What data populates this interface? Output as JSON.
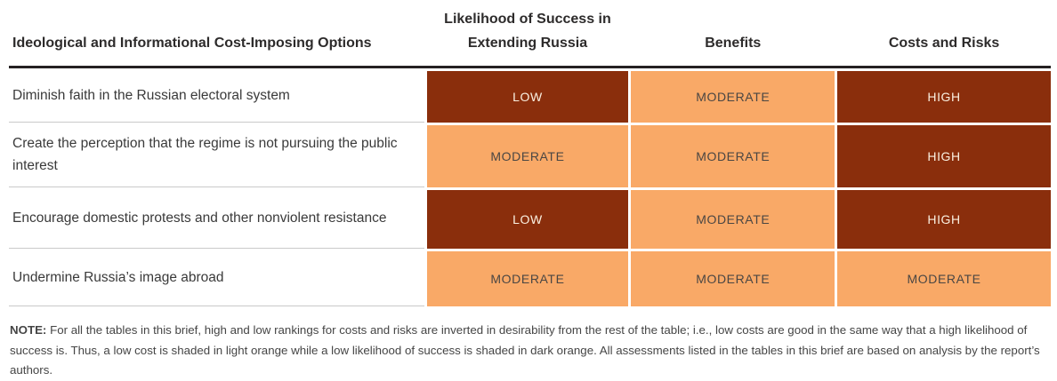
{
  "table": {
    "headers": [
      "Ideological and Informational Cost-Imposing Options",
      "Likelihood of Success in Extending Russia",
      "Benefits",
      "Costs and Risks"
    ],
    "rows": [
      {
        "option": "Diminish faith in the Russian electoral system",
        "ratings": [
          {
            "label": "LOW",
            "tone": "dark"
          },
          {
            "label": "MODERATE",
            "tone": "light"
          },
          {
            "label": "HIGH",
            "tone": "dark"
          }
        ]
      },
      {
        "option": "Create the perception that the regime is not pursuing the public interest",
        "ratings": [
          {
            "label": "MODERATE",
            "tone": "light"
          },
          {
            "label": "MODERATE",
            "tone": "light"
          },
          {
            "label": "HIGH",
            "tone": "dark"
          }
        ]
      },
      {
        "option": "Encourage domestic protests and other nonviolent resistance",
        "ratings": [
          {
            "label": "LOW",
            "tone": "dark"
          },
          {
            "label": "MODERATE",
            "tone": "light"
          },
          {
            "label": "HIGH",
            "tone": "dark"
          }
        ]
      },
      {
        "option": "Undermine Russia’s image abroad",
        "ratings": [
          {
            "label": "MODERATE",
            "tone": "light"
          },
          {
            "label": "MODERATE",
            "tone": "light"
          },
          {
            "label": "MODERATE",
            "tone": "light"
          }
        ]
      }
    ]
  },
  "note": {
    "label": "NOTE:",
    "text": " For all the tables in this brief, high and low rankings for costs and risks are inverted in desirability from the rest of the table; i.e., low costs are good in the same way that a high likelihood of success is. Thus, a low cost is shaded in light orange while a low likelihood of success is shaded in dark orange. All assessments listed in the tables in this brief are based on analysis by the report’s authors."
  },
  "colors": {
    "dark_orange": "#8a2e0c",
    "light_orange": "#f9a967",
    "header_rule": "#252122",
    "row_divider": "#c9c9c9"
  }
}
